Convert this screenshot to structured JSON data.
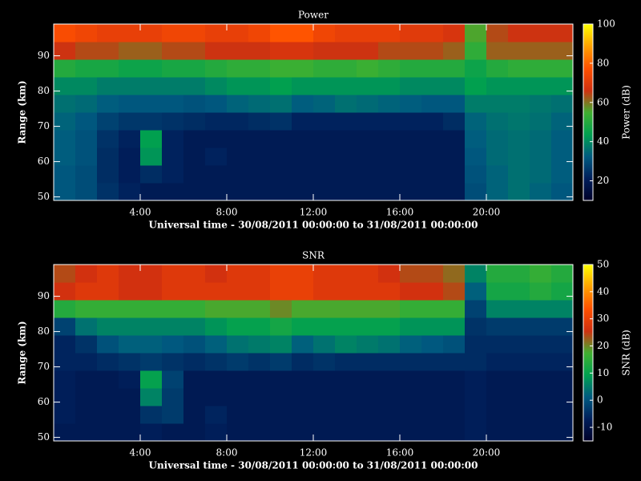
{
  "chart_data": [
    {
      "type": "heatmap",
      "title": "Power",
      "xlabel": "Universal time - 30/08/2011 00:00:00 to 31/08/2011 00:00:00",
      "ylabel": "Range (km)",
      "colorbar_label": "Power (dB)",
      "xlim": [
        0,
        24
      ],
      "xticks": [
        {
          "value": 4,
          "label": "4:00"
        },
        {
          "value": 8,
          "label": "8:00"
        },
        {
          "value": 12,
          "label": "12:00"
        },
        {
          "value": 16,
          "label": "16:00"
        },
        {
          "value": 20,
          "label": "20:00"
        }
      ],
      "ylim": [
        49,
        99
      ],
      "yticks": [
        50,
        60,
        70,
        80,
        90
      ],
      "clim": [
        10,
        100
      ],
      "cticks": [
        20,
        40,
        60,
        80,
        100
      ],
      "colorscale": [
        "#000028",
        "#001e5a",
        "#005a80",
        "#00a050",
        "#40b030",
        "#d03010",
        "#ff5000",
        "#ffa000",
        "#ffff00"
      ],
      "xbins": [
        0,
        1,
        2,
        3,
        4,
        5,
        6,
        7,
        8,
        9,
        10,
        11,
        12,
        13,
        14,
        15,
        16,
        17,
        18,
        19,
        20,
        21,
        22,
        23,
        24
      ],
      "ybins": [
        49,
        54,
        59,
        64,
        69,
        74,
        79,
        84,
        89,
        94,
        99
      ],
      "values": [
        [
          32,
          30,
          25,
          22,
          20,
          20,
          20,
          20,
          20,
          20,
          20,
          20,
          20,
          20,
          20,
          20,
          20,
          20,
          20,
          30,
          34,
          36,
          34,
          32
        ],
        [
          32,
          30,
          24,
          21,
          24,
          22,
          20,
          20,
          20,
          20,
          20,
          20,
          20,
          20,
          20,
          20,
          20,
          20,
          20,
          31,
          34,
          36,
          35,
          33
        ],
        [
          33,
          31,
          24,
          21,
          42,
          22,
          20,
          22,
          20,
          20,
          20,
          20,
          20,
          20,
          20,
          20,
          20,
          20,
          20,
          32,
          35,
          36,
          35,
          33
        ],
        [
          33,
          31,
          25,
          22,
          44,
          22,
          20,
          20,
          20,
          20,
          20,
          20,
          20,
          20,
          20,
          20,
          20,
          20,
          20,
          33,
          35,
          36,
          35,
          33
        ],
        [
          34,
          32,
          28,
          26,
          26,
          25,
          24,
          23,
          23,
          24,
          25,
          22,
          22,
          22,
          22,
          22,
          22,
          22,
          24,
          34,
          36,
          37,
          36,
          34
        ],
        [
          36,
          35,
          33,
          32,
          32,
          32,
          31,
          32,
          34,
          35,
          36,
          33,
          34,
          36,
          35,
          34,
          33,
          32,
          32,
          38,
          38,
          38,
          37,
          36
        ],
        [
          40,
          40,
          38,
          38,
          38,
          38,
          38,
          40,
          42,
          42,
          44,
          42,
          42,
          42,
          42,
          42,
          40,
          40,
          40,
          44,
          42,
          42,
          42,
          42
        ],
        [
          50,
          48,
          48,
          46,
          46,
          48,
          48,
          50,
          52,
          52,
          54,
          54,
          52,
          52,
          54,
          52,
          50,
          50,
          50,
          46,
          50,
          52,
          52,
          52
        ],
        [
          66,
          64,
          64,
          62,
          62,
          64,
          64,
          66,
          66,
          66,
          68,
          68,
          66,
          66,
          66,
          64,
          64,
          64,
          62,
          52,
          62,
          62,
          62,
          62
        ],
        [
          76,
          74,
          72,
          72,
          72,
          74,
          74,
          72,
          72,
          74,
          78,
          78,
          74,
          72,
          72,
          72,
          70,
          70,
          68,
          56,
          64,
          66,
          66,
          66
        ]
      ]
    },
    {
      "type": "heatmap",
      "title": "SNR",
      "xlabel": "Universal time - 30/08/2011 00:00:00 to 31/08/2011 00:00:00",
      "ylabel": "Range (km)",
      "colorbar_label": "SNR (dB)",
      "xlim": [
        0,
        24
      ],
      "xticks": [
        {
          "value": 4,
          "label": "4:00"
        },
        {
          "value": 8,
          "label": "8:00"
        },
        {
          "value": 12,
          "label": "12:00"
        },
        {
          "value": 16,
          "label": "16:00"
        },
        {
          "value": 20,
          "label": "20:00"
        }
      ],
      "ylim": [
        49,
        99
      ],
      "yticks": [
        50,
        60,
        70,
        80,
        90
      ],
      "clim": [
        -15,
        50
      ],
      "cticks": [
        -10,
        0,
        10,
        20,
        30,
        40,
        50
      ],
      "colorscale": [
        "#000028",
        "#001e5a",
        "#005a80",
        "#00a050",
        "#40b030",
        "#d03010",
        "#ff5000",
        "#ffa000",
        "#ffff00"
      ],
      "xbins": [
        0,
        1,
        2,
        3,
        4,
        5,
        6,
        7,
        8,
        9,
        10,
        11,
        12,
        13,
        14,
        15,
        16,
        17,
        18,
        19,
        20,
        21,
        22,
        23,
        24
      ],
      "ybins": [
        49,
        54,
        59,
        64,
        69,
        74,
        79,
        84,
        89,
        94,
        99
      ],
      "values": [
        [
          -8,
          -8,
          -8,
          -8,
          -7,
          -8,
          -8,
          -7,
          -8,
          -8,
          -8,
          -8,
          -8,
          -8,
          -8,
          -8,
          -8,
          -8,
          -8,
          -7,
          -8,
          -8,
          -8,
          -8
        ],
        [
          -7,
          -8,
          -8,
          -8,
          -4,
          -3,
          -8,
          -6,
          -8,
          -8,
          -8,
          -8,
          -8,
          -8,
          -8,
          -8,
          -8,
          -8,
          -8,
          -7,
          -8,
          -8,
          -8,
          -8
        ],
        [
          -7,
          -8,
          -8,
          -8,
          6,
          -3,
          -8,
          -8,
          -8,
          -8,
          -8,
          -8,
          -8,
          -8,
          -8,
          -8,
          -8,
          -8,
          -8,
          -7,
          -8,
          -8,
          -8,
          -8
        ],
        [
          -7,
          -8,
          -8,
          -7,
          10,
          -2,
          -8,
          -8,
          -8,
          -8,
          -8,
          -8,
          -8,
          -8,
          -8,
          -8,
          -8,
          -8,
          -8,
          -7,
          -8,
          -8,
          -8,
          -8
        ],
        [
          -6,
          -6,
          -5,
          -4,
          -3,
          -4,
          -5,
          -4,
          -3,
          -4,
          -3,
          -5,
          -4,
          -5,
          -5,
          -5,
          -5,
          -5,
          -5,
          -5,
          -6,
          -6,
          -6,
          -6
        ],
        [
          -6,
          -4,
          0,
          2,
          2,
          1,
          0,
          2,
          4,
          5,
          6,
          2,
          4,
          6,
          5,
          4,
          2,
          1,
          0,
          -5,
          -5,
          -5,
          -5,
          -5
        ],
        [
          -2,
          4,
          6,
          6,
          6,
          6,
          6,
          8,
          10,
          10,
          12,
          10,
          10,
          10,
          10,
          10,
          8,
          8,
          8,
          -4,
          -3,
          -3,
          -3,
          -3
        ],
        [
          14,
          16,
          16,
          16,
          16,
          16,
          16,
          18,
          18,
          18,
          20,
          18,
          18,
          18,
          18,
          18,
          16,
          16,
          16,
          -2,
          6,
          6,
          6,
          6
        ],
        [
          26,
          28,
          28,
          26,
          26,
          28,
          28,
          28,
          28,
          28,
          30,
          30,
          28,
          28,
          28,
          28,
          26,
          26,
          24,
          2,
          12,
          12,
          14,
          12
        ],
        [
          24,
          26,
          28,
          26,
          26,
          28,
          28,
          26,
          28,
          28,
          30,
          30,
          28,
          28,
          28,
          26,
          24,
          24,
          22,
          6,
          14,
          14,
          16,
          14
        ]
      ]
    }
  ]
}
